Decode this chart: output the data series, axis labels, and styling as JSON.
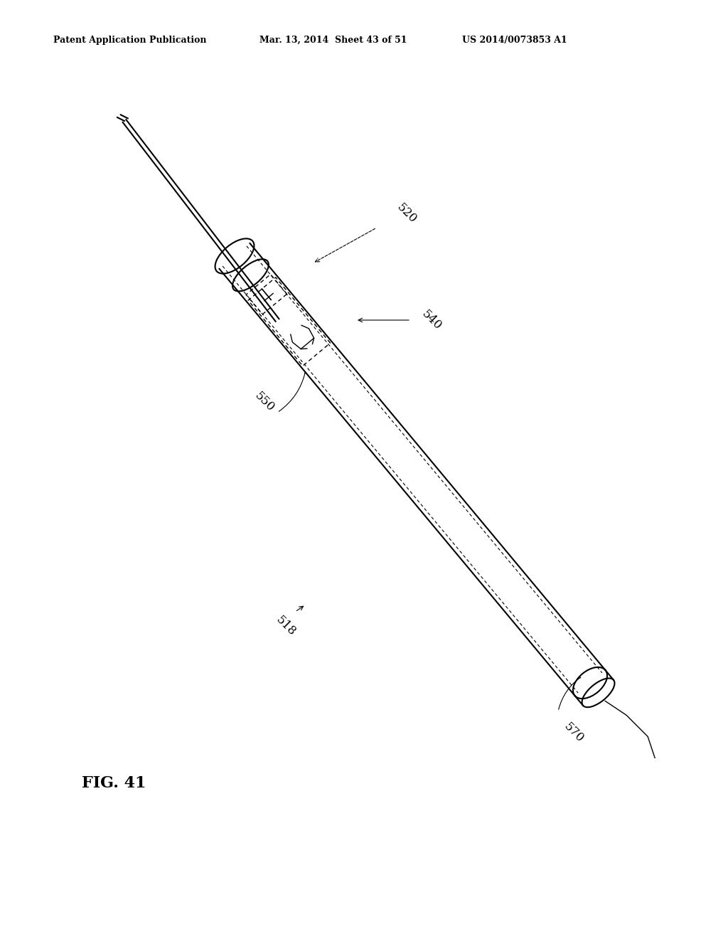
{
  "bg_color": "#ffffff",
  "line_color": "#000000",
  "header_left": "Patent Application Publication",
  "header_mid": "Mar. 13, 2014  Sheet 43 of 51",
  "header_right": "US 2014/0073853 A1",
  "fig_label": "FIG. 41",
  "label_520": "520",
  "label_540": "540",
  "label_550": "550",
  "label_518": "518",
  "label_570": "570"
}
